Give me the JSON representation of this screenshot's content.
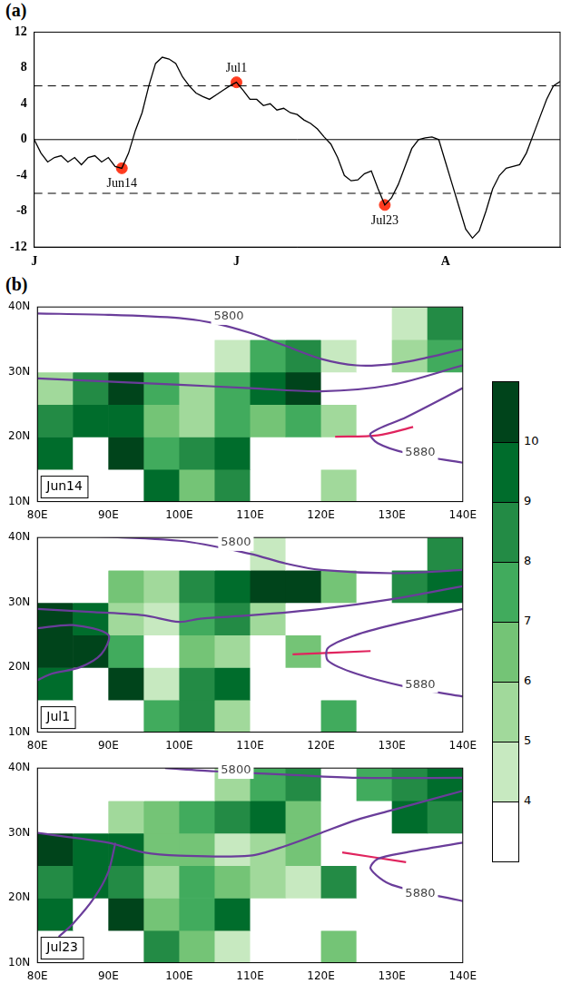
{
  "chart_data": [
    {
      "type": "line",
      "label": "(a)",
      "color": "#000000",
      "grid": false,
      "x": [
        0,
        1,
        2,
        3,
        4,
        5,
        6,
        7,
        8,
        9,
        10,
        11,
        12,
        13,
        14,
        15,
        16,
        17,
        18,
        19,
        20,
        21,
        22,
        23,
        24,
        25,
        26,
        27,
        28,
        29,
        30,
        31,
        32,
        33,
        34,
        35,
        36,
        37,
        38,
        39,
        40,
        41,
        42,
        43,
        44,
        45,
        46,
        47,
        48,
        49,
        50,
        51,
        52,
        53,
        54,
        55,
        56,
        57,
        58,
        59,
        60,
        61,
        62,
        63,
        64,
        65,
        66,
        67,
        68,
        69,
        70,
        71,
        72,
        73,
        74,
        75,
        76,
        77,
        78
      ],
      "values": [
        0,
        -1.5,
        -2.5,
        -2,
        -1.8,
        -2.5,
        -2,
        -2.8,
        -2,
        -1.8,
        -2.5,
        -2,
        -3,
        -3.2,
        -1.5,
        1,
        3,
        6,
        8.5,
        9.2,
        9,
        8.5,
        7,
        6,
        5.2,
        4.8,
        4.5,
        5,
        5.5,
        6,
        6.4,
        5.5,
        4.5,
        4.5,
        3.8,
        4,
        3.3,
        3.5,
        3,
        2.8,
        2.2,
        1.8,
        1.2,
        0.3,
        -0.5,
        -2,
        -4,
        -4.6,
        -4.5,
        -3.8,
        -3.5,
        -5.5,
        -7.3,
        -6.5,
        -5,
        -3,
        -1,
        0,
        0.2,
        0.3,
        0,
        -2.5,
        -5,
        -7.5,
        -10,
        -11,
        -10.2,
        -8,
        -5.5,
        -4,
        -3.2,
        -3,
        -2.8,
        -1.5,
        0.5,
        2.5,
        4.5,
        6,
        6.5
      ],
      "xlim": [
        0,
        78
      ],
      "xticks": [
        {
          "value": 0,
          "label": "J"
        },
        {
          "value": 30,
          "label": "J"
        },
        {
          "value": 61,
          "label": "A"
        }
      ],
      "ylim": [
        -12,
        12
      ],
      "yticks": [
        -12,
        -8,
        -4,
        0,
        4,
        8,
        12
      ],
      "hlines": [
        {
          "y": 6,
          "line_style": "dashed",
          "color": "#000000"
        },
        {
          "y": 0,
          "line_style": "solid",
          "color": "#000000"
        },
        {
          "y": -6,
          "line_style": "dashed",
          "color": "#000000"
        }
      ],
      "points_color": "#ff3b1f",
      "points": [
        {
          "x": 13,
          "y": -3.2,
          "label": "Jun14"
        },
        {
          "x": 30,
          "y": 6.4,
          "label": "Jul1"
        },
        {
          "x": 52,
          "y": -7.3,
          "label": "Jul23"
        }
      ]
    },
    {
      "type": "heatmap",
      "label": "(b)",
      "grid": false,
      "xlim": [
        80,
        140
      ],
      "xticks": [
        {
          "value": 80,
          "label": "80E"
        },
        {
          "value": 90,
          "label": "90E"
        },
        {
          "value": 100,
          "label": "100E"
        },
        {
          "value": 110,
          "label": "110E"
        },
        {
          "value": 120,
          "label": "120E"
        },
        {
          "value": 130,
          "label": "130E"
        },
        {
          "value": 140,
          "label": "140E"
        }
      ],
      "ylim": [
        10,
        40
      ],
      "yticks": [
        {
          "value": 10,
          "label": "10N"
        },
        {
          "value": 20,
          "label": "20N"
        },
        {
          "value": 30,
          "label": "30N"
        },
        {
          "value": 40,
          "label": "40N"
        }
      ],
      "lons": [
        82.5,
        87.5,
        92.5,
        97.5,
        102.5,
        107.5,
        112.5,
        117.5,
        122.5,
        127.5,
        132.5,
        137.5
      ],
      "lats": [
        12.5,
        17.5,
        22.5,
        27.5,
        32.5,
        37.5
      ],
      "colorbar": {
        "ticks": [
          4,
          5,
          6,
          7,
          8,
          9,
          10
        ],
        "colors": [
          "#ffffff",
          "#c7e9c0",
          "#a1d99b",
          "#74c476",
          "#41ab5d",
          "#238b45",
          "#006d2c",
          "#00441b"
        ]
      },
      "panels": [
        {
          "label": "Jun14",
          "precip": [
            [
              0,
              0,
              0,
              9,
              6,
              8,
              0,
              0,
              5,
              0,
              0,
              0
            ],
            [
              9,
              0,
              10,
              7,
              8,
              9,
              0,
              0,
              0,
              0,
              0,
              0
            ],
            [
              8,
              9,
              9,
              6,
              5,
              7,
              6,
              7,
              5,
              0,
              0,
              0
            ],
            [
              5,
              8,
              10,
              7,
              5,
              7,
              9,
              10,
              3,
              0,
              0,
              0
            ],
            [
              0,
              0,
              0,
              0,
              0,
              4,
              7,
              8,
              4,
              0,
              5,
              7
            ],
            [
              0,
              0,
              0,
              0,
              0,
              0,
              0,
              0,
              0,
              0,
              4,
              8
            ]
          ],
          "lines": [
            {
              "color": "#6a3d9a",
              "points": [
                [
                  80,
                  39
                ],
                [
                  90,
                  38.8
                ],
                [
                  100,
                  38.3
                ],
                [
                  105,
                  37.5
                ],
                [
                  110,
                  36
                ],
                [
                  115,
                  34
                ],
                [
                  120,
                  32
                ],
                [
                  125,
                  31
                ],
                [
                  130,
                  31.2
                ],
                [
                  135,
                  32.2
                ],
                [
                  140,
                  33.5
                ]
              ]
            },
            {
              "color": "#6a3d9a",
              "points": [
                [
                  80,
                  29
                ],
                [
                  90,
                  28.5
                ],
                [
                  100,
                  28
                ],
                [
                  110,
                  27.5
                ],
                [
                  120,
                  27
                ],
                [
                  130,
                  28
                ],
                [
                  140,
                  31
                ]
              ]
            },
            {
              "color": "#6a3d9a",
              "points": [
                [
                  140,
                  27.5
                ],
                [
                  132,
                  23
                ],
                [
                  127,
                  20.5
                ],
                [
                  128,
                  19
                ],
                [
                  132,
                  17.5
                ],
                [
                  140,
                  16
                ]
              ]
            },
            {
              "color": "#e0245e",
              "points": [
                [
                  122,
                  20
                ],
                [
                  128,
                  20.2
                ],
                [
                  133,
                  21.5
                ]
              ]
            }
          ],
          "annotations": [
            {
              "x": 107,
              "y": 38.5,
              "text": "5800"
            },
            {
              "x": 134,
              "y": 17.5,
              "text": "5880"
            }
          ]
        },
        {
          "label": "Jul1",
          "precip": [
            [
              0,
              0,
              0,
              7,
              8,
              5,
              0,
              0,
              7,
              0,
              0,
              0
            ],
            [
              9,
              0,
              10,
              4,
              8,
              9,
              0,
              0,
              0,
              0,
              0,
              0
            ],
            [
              10,
              10,
              7,
              3,
              6,
              5,
              3,
              6,
              0,
              0,
              0,
              0
            ],
            [
              10,
              9,
              5,
              4,
              7,
              8,
              5,
              3,
              0,
              0,
              0,
              0
            ],
            [
              0,
              0,
              6,
              5,
              8,
              9,
              10,
              10,
              6,
              0,
              8,
              9
            ],
            [
              0,
              0,
              0,
              0,
              0,
              0,
              4,
              0,
              0,
              0,
              0,
              8
            ]
          ],
          "lines": [
            {
              "color": "#6a3d9a",
              "points": [
                [
                  80,
                  40.5
                ],
                [
                  100,
                  39.5
                ],
                [
                  110,
                  37.5
                ],
                [
                  115,
                  36
                ],
                [
                  120,
                  35
                ],
                [
                  130,
                  34.5
                ],
                [
                  140,
                  35
                ]
              ]
            },
            {
              "color": "#6a3d9a",
              "points": [
                [
                  80,
                  29
                ],
                [
                  88,
                  28.5
                ],
                [
                  95,
                  28
                ],
                [
                  100,
                  27
                ],
                [
                  103,
                  27.5
                ],
                [
                  110,
                  28
                ],
                [
                  120,
                  29
                ],
                [
                  130,
                  30.5
                ],
                [
                  140,
                  32.5
                ]
              ]
            },
            {
              "color": "#6a3d9a",
              "points": [
                [
                  80,
                  26
                ],
                [
                  85,
                  26.5
                ],
                [
                  90,
                  25
                ],
                [
                  89,
                  22
                ],
                [
                  86,
                  20
                ],
                [
                  82,
                  19
                ],
                [
                  80,
                  18
                ]
              ]
            },
            {
              "color": "#6a3d9a",
              "points": [
                [
                  140,
                  29
                ],
                [
                  130,
                  26.5
                ],
                [
                  125,
                  25
                ],
                [
                  121,
                  23
                ],
                [
                  121,
                  21
                ],
                [
                  125,
                  19
                ],
                [
                  132,
                  17
                ],
                [
                  140,
                  15.5
                ]
              ]
            },
            {
              "color": "#e0245e",
              "points": [
                [
                  116,
                  22
                ],
                [
                  127,
                  22.5
                ]
              ]
            }
          ],
          "annotations": [
            {
              "x": 108,
              "y": 39.2,
              "text": "5800"
            },
            {
              "x": 134,
              "y": 17.3,
              "text": "5880"
            }
          ]
        },
        {
          "label": "Jul23",
          "precip": [
            [
              0,
              0,
              0,
              8,
              6,
              4,
              0,
              0,
              6,
              0,
              0,
              0
            ],
            [
              9,
              0,
              10,
              6,
              7,
              9,
              0,
              0,
              0,
              0,
              0,
              0
            ],
            [
              8,
              9,
              8,
              5,
              7,
              6,
              5,
              4,
              8,
              0,
              0,
              0
            ],
            [
              10,
              9,
              9,
              6,
              6,
              4,
              5,
              6,
              0,
              0,
              0,
              0
            ],
            [
              0,
              0,
              5,
              6,
              7,
              8,
              9,
              6,
              0,
              0,
              9,
              8
            ],
            [
              0,
              0,
              0,
              0,
              0,
              5,
              7,
              8,
              0,
              7,
              8,
              9
            ]
          ],
          "lines": [
            {
              "color": "#6a3d9a",
              "points": [
                [
                  98,
                  40
                ],
                [
                  105,
                  39.5
                ],
                [
                  115,
                  39
                ],
                [
                  125,
                  38.5
                ],
                [
                  140,
                  38.5
                ]
              ]
            },
            {
              "color": "#6a3d9a",
              "points": [
                [
                  80,
                  30
                ],
                [
                  90,
                  28.5
                ],
                [
                  95,
                  27
                ],
                [
                  100,
                  26.5
                ],
                [
                  110,
                  26.5
                ],
                [
                  115,
                  28
                ],
                [
                  120,
                  30
                ],
                [
                  125,
                  32
                ],
                [
                  130,
                  33.5
                ],
                [
                  140,
                  36.5
                ]
              ]
            },
            {
              "color": "#6a3d9a",
              "points": [
                [
                  91,
                  28.5
                ],
                [
                  90,
                  24
                ],
                [
                  88,
                  20
                ],
                [
                  85,
                  16
                ],
                [
                  83,
                  14
                ]
              ]
            },
            {
              "color": "#6a3d9a",
              "points": [
                [
                  140,
                  28.5
                ],
                [
                  132,
                  27
                ],
                [
                  128,
                  26
                ],
                [
                  127,
                  24.5
                ],
                [
                  130,
                  22
                ],
                [
                  140,
                  19.5
                ]
              ]
            },
            {
              "color": "#e0245e",
              "points": [
                [
                  123,
                  27
                ],
                [
                  132,
                  25.5
                ]
              ]
            }
          ],
          "annotations": [
            {
              "x": 108,
              "y": 39.6,
              "text": "5800"
            },
            {
              "x": 134,
              "y": 20.6,
              "text": "5880"
            }
          ]
        }
      ]
    }
  ]
}
